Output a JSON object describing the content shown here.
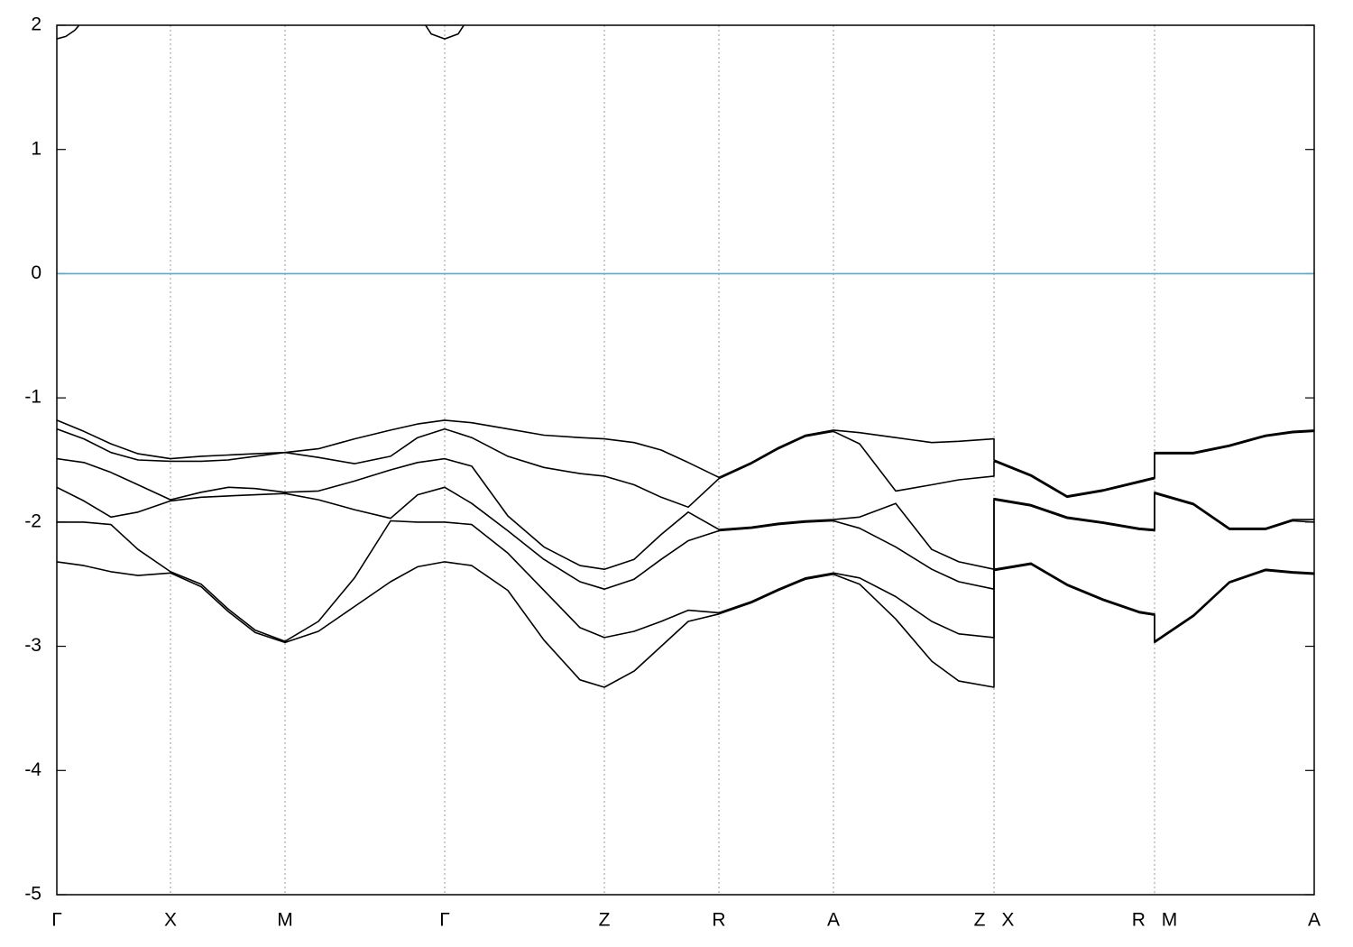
{
  "chart_data": {
    "type": "line",
    "x": [
      0,
      0.3,
      0.6,
      0.9,
      1.26,
      1.6,
      1.9,
      2.2,
      2.53,
      2.9,
      3.3,
      3.7,
      4.0,
      4.3,
      4.6,
      5.0,
      5.4,
      5.8,
      6.07,
      6.4,
      6.7,
      7.0,
      7.34,
      7.7,
      8.0,
      8.3,
      8.61,
      8.9,
      9.3,
      9.7,
      10.0,
      10.39,
      10.39,
      10.8,
      11.2,
      11.6,
      12.0,
      12.17,
      12.17,
      12.6,
      13.0,
      13.4,
      13.7,
      13.94
    ],
    "series": [
      {
        "values": [
          -1.18,
          -1.27,
          -1.37,
          -1.45,
          -1.49,
          -1.47,
          -1.46,
          -1.45,
          -1.44,
          -1.41,
          -1.33,
          -1.26,
          -1.21,
          -1.18,
          -1.2,
          -1.25,
          -1.3,
          -1.32,
          -1.33,
          -1.36,
          -1.42,
          -1.52,
          -1.64,
          -1.52,
          -1.4,
          -1.3,
          -1.26,
          -1.28,
          -1.32,
          -1.36,
          -1.35,
          -1.33,
          -1.5,
          -1.62,
          -1.79,
          -1.74,
          -1.67,
          -1.64,
          -1.44,
          -1.44,
          -1.38,
          -1.3,
          -1.27,
          -1.26
        ]
      },
      {
        "values": [
          -1.25,
          -1.33,
          -1.44,
          -1.5,
          -1.51,
          -1.51,
          -1.5,
          -1.47,
          -1.44,
          -1.48,
          -1.53,
          -1.47,
          -1.32,
          -1.25,
          -1.32,
          -1.47,
          -1.56,
          -1.61,
          -1.63,
          -1.7,
          -1.8,
          -1.88,
          -1.65,
          -1.53,
          -1.41,
          -1.31,
          -1.27,
          -1.37,
          -1.75,
          -1.7,
          -1.66,
          -1.63,
          -1.51,
          -1.63,
          -1.8,
          -1.75,
          -1.68,
          -1.65,
          -1.45,
          -1.45,
          -1.39,
          -1.31,
          -1.28,
          -1.27
        ]
      },
      {
        "values": [
          -1.49,
          -1.52,
          -1.6,
          -1.7,
          -1.82,
          -1.76,
          -1.72,
          -1.73,
          -1.76,
          -1.75,
          -1.67,
          -1.58,
          -1.52,
          -1.49,
          -1.55,
          -1.95,
          -2.2,
          -2.35,
          -2.38,
          -2.3,
          -2.1,
          -1.92,
          -2.06,
          -2.04,
          -2.01,
          -1.99,
          -1.98,
          -1.96,
          -1.85,
          -2.22,
          -2.32,
          -2.38,
          -1.81,
          -1.86,
          -1.96,
          -2.0,
          -2.05,
          -2.06,
          -1.76,
          -1.85,
          -2.05,
          -2.05,
          -1.98,
          -1.98
        ]
      },
      {
        "values": [
          -1.72,
          -1.83,
          -1.96,
          -1.92,
          -1.83,
          -1.8,
          -1.79,
          -1.78,
          -1.77,
          -1.82,
          -1.9,
          -1.97,
          -1.78,
          -1.72,
          -1.85,
          -2.07,
          -2.3,
          -2.48,
          -2.54,
          -2.46,
          -2.3,
          -2.15,
          -2.07,
          -2.05,
          -2.02,
          -2.0,
          -1.99,
          -2.05,
          -2.2,
          -2.38,
          -2.48,
          -2.54,
          -1.82,
          -1.87,
          -1.97,
          -2.01,
          -2.06,
          -2.07,
          -1.77,
          -1.86,
          -2.06,
          -2.06,
          -1.99,
          -2.0
        ]
      },
      {
        "values": [
          -2.0,
          -2.0,
          -2.02,
          -2.22,
          -2.4,
          -2.5,
          -2.7,
          -2.87,
          -2.96,
          -2.8,
          -2.45,
          -1.99,
          -2.0,
          -2.0,
          -2.02,
          -2.25,
          -2.55,
          -2.85,
          -2.93,
          -2.88,
          -2.8,
          -2.71,
          -2.73,
          -2.64,
          -2.54,
          -2.45,
          -2.41,
          -2.45,
          -2.6,
          -2.8,
          -2.9,
          -2.93,
          -2.38,
          -2.33,
          -2.5,
          -2.62,
          -2.72,
          -2.74,
          -2.96,
          -2.75,
          -2.48,
          -2.38,
          -2.4,
          -2.41
        ]
      },
      {
        "values": [
          -2.32,
          -2.35,
          -2.4,
          -2.43,
          -2.41,
          -2.52,
          -2.72,
          -2.89,
          -2.97,
          -2.88,
          -2.68,
          -2.48,
          -2.36,
          -2.32,
          -2.35,
          -2.55,
          -2.95,
          -3.27,
          -3.33,
          -3.2,
          -3.0,
          -2.8,
          -2.74,
          -2.65,
          -2.55,
          -2.46,
          -2.42,
          -2.5,
          -2.78,
          -3.12,
          -3.28,
          -3.33,
          -2.39,
          -2.34,
          -2.51,
          -2.63,
          -2.73,
          -2.75,
          -2.97,
          -2.76,
          -2.49,
          -2.39,
          -2.41,
          -2.42
        ]
      },
      {
        "x": [
          0,
          0.1,
          0.2,
          0.27,
          2.0,
          4.07,
          4.15,
          4.3,
          4.45,
          4.53
        ],
        "values": [
          1.89,
          1.91,
          1.96,
          2.02,
          null,
          2.02,
          1.93,
          1.89,
          1.93,
          2.02
        ]
      }
    ],
    "line_color": "#000000",
    "fermi_level": 0,
    "fermi_color": "#5aaac8",
    "xlim": [
      0,
      13.94
    ],
    "xticks": [
      {
        "value": 0,
        "label": "Γ"
      },
      {
        "value": 1.26,
        "label": "X"
      },
      {
        "value": 2.53,
        "label": "M"
      },
      {
        "value": 4.3,
        "label": "Γ"
      },
      {
        "value": 6.07,
        "label": "Z"
      },
      {
        "value": 7.34,
        "label": "R"
      },
      {
        "value": 8.61,
        "label": "A"
      },
      {
        "value": 10.39,
        "label": "Z X"
      },
      {
        "value": 12.17,
        "label": "R M"
      },
      {
        "value": 13.94,
        "label": "A"
      }
    ],
    "ylim": [
      -5,
      2
    ],
    "yticks": [
      -5,
      -4,
      -3,
      -2,
      -1,
      0,
      1,
      2
    ],
    "grid": true
  }
}
